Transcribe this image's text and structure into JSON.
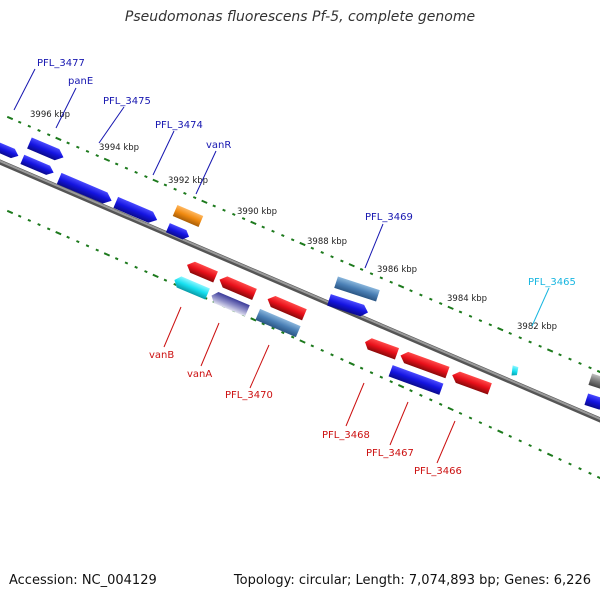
{
  "title": "Pseudomonas fluorescens Pf-5, complete genome",
  "footer": {
    "accession": "Accession: NC_004129",
    "stats": "Topology: circular; Length: 7,074,893 bp; Genes: 6,226"
  },
  "colors": {
    "forward": "#1414e0",
    "reverse": "#e8101a",
    "steelblue": "#4a7fb5",
    "orange": "#f08a10",
    "cyan": "#16e0f0",
    "lilac": "#7070b8",
    "gray": "#8a8a8a",
    "tick": "#1d7a1d",
    "label_blue": "#1616b0",
    "label_red": "#cc1010",
    "label_cyan": "#18b6e0"
  },
  "ticks": {
    "kbp_outer": [
      "3996 kbp",
      "3994 kbp",
      "3992 kbp",
      "3990 kbp",
      "3988 kbp",
      "3986 kbp",
      "3984 kbp",
      "3982 kbp"
    ]
  },
  "genes": {
    "PFL_3477": "PFL_3477",
    "panE": "panE",
    "PFL_3475": "PFL_3475",
    "PFL_3474": "PFL_3474",
    "vanR": "vanR",
    "PFL_3469": "PFL_3469",
    "PFL_3465": "PFL_3465",
    "vanB": "vanB",
    "vanA": "vanA",
    "PFL_3470": "PFL_3470",
    "PFL_3468": "PFL_3468",
    "PFL_3467": "PFL_3467",
    "PFL_3466": "PFL_3466"
  }
}
